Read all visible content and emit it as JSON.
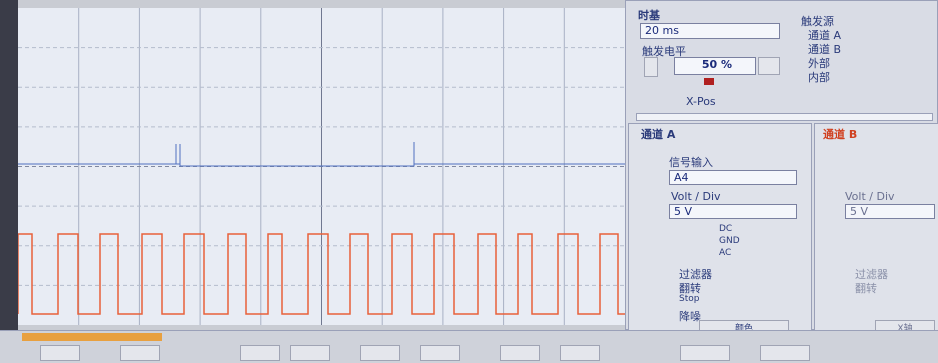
{
  "time_base": {
    "title": "时基",
    "value": "20 ms"
  },
  "trigger": {
    "level_label": "触发电平",
    "level_value": "50 %",
    "x_pos": "X-Pos"
  },
  "trigger_source": {
    "title": "触发源",
    "options": [
      "通道 A",
      "通道 B",
      "外部",
      "内部"
    ]
  },
  "channel_a": {
    "title": "通道 A",
    "signal_input_label": "信号输入",
    "signal_input": "A4",
    "volt_div_label": "Volt / Div",
    "volt_div": "5 V",
    "coupling": [
      "DC",
      "GND",
      "AC"
    ],
    "options": [
      "过滤器",
      "翻转",
      "Stop",
      "降噪"
    ],
    "color_button": "颜色"
  },
  "channel_b": {
    "title": "通道 B",
    "volt_div_label": "Volt / Div",
    "volt_div": "5 V",
    "options": [
      "过滤器",
      "翻转"
    ],
    "x_button": "X轴"
  }
}
